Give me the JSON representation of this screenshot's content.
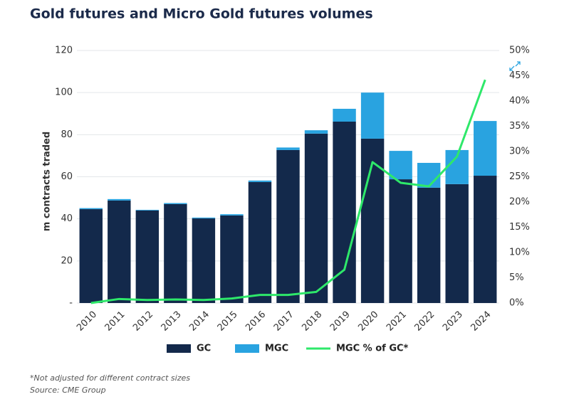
{
  "chart_data": {
    "type": "bar",
    "stacked": true,
    "title": "Gold futures and Micro Gold futures volumes",
    "ylabel": "m contracts traded",
    "footnote": "*Not adjusted for different contract sizes",
    "source": "Source: CME Group",
    "categories": [
      "2010",
      "2011",
      "2012",
      "2013",
      "2014",
      "2015",
      "2016",
      "2017",
      "2018",
      "2019",
      "2020",
      "2021",
      "2022",
      "2023",
      "2024"
    ],
    "series": [
      {
        "name": "GC",
        "type": "bar",
        "color": "#13294b",
        "values": [
          44.6,
          48.7,
          44,
          47,
          40.2,
          41.6,
          57.5,
          72.7,
          80.5,
          86.2,
          78.1,
          58.8,
          54.8,
          56.5,
          60.5
        ]
      },
      {
        "name": "MGC",
        "type": "bar",
        "color": "#29a3e0",
        "values": [
          0.5,
          0.7,
          0.3,
          0.5,
          0.4,
          0.6,
          0.7,
          1.2,
          1.6,
          6.1,
          21.9,
          13.5,
          11.8,
          16.2,
          26
        ]
      },
      {
        "name": "MGC % of GC*",
        "type": "line",
        "axis": "y2",
        "color": "#2ee86a",
        "values": [
          0,
          0.8,
          0.6,
          0.7,
          0.6,
          0.9,
          1.6,
          1.6,
          2.2,
          6.6,
          27.9,
          23.8,
          23.1,
          29,
          44.2
        ]
      }
    ],
    "ylim": [
      0,
      120
    ],
    "yticks": [
      {
        "value": 0,
        "label": "-"
      },
      20,
      40,
      60,
      80,
      100,
      120
    ],
    "y2lim": [
      0,
      50
    ],
    "y2ticks": [
      {
        "value": 0,
        "label": "0%"
      },
      {
        "value": 5,
        "label": "5%"
      },
      {
        "value": 10,
        "label": "10%"
      },
      {
        "value": 15,
        "label": "15%"
      },
      {
        "value": 20,
        "label": "20%"
      },
      {
        "value": 25,
        "label": "25%"
      },
      {
        "value": 30,
        "label": "30%"
      },
      {
        "value": 35,
        "label": "35%"
      },
      {
        "value": 40,
        "label": "40%"
      },
      {
        "value": 45,
        "label": "45%"
      },
      {
        "value": 50,
        "label": "50%"
      }
    ],
    "grid": true
  }
}
